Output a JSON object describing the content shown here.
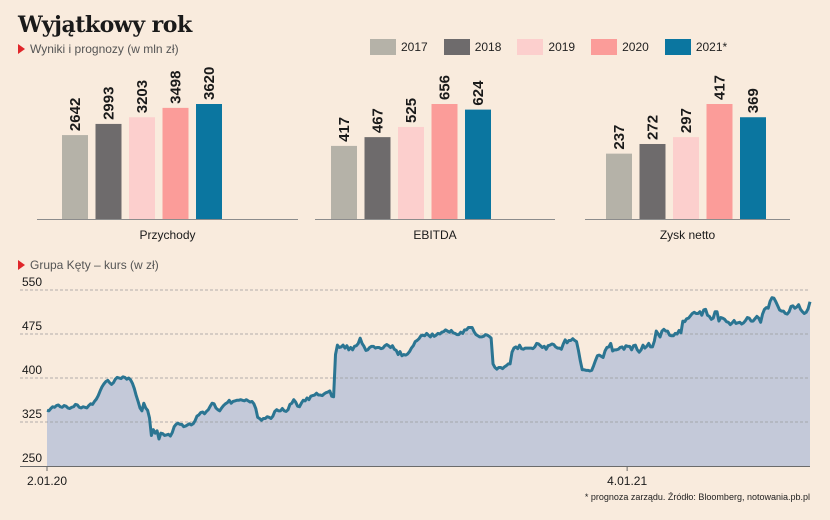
{
  "title": "Wyjątkowy rok",
  "subtitle_bars": "Wyniki i prognozy (w mln zł)",
  "subtitle_line": "Grupa Kęty – kurs (w zł)",
  "footnote": "* prognoza zarządu. Źródło: Bloomberg, notowania.pb.pl",
  "colors": {
    "2017": "#b5b2a8",
    "2018": "#6e6b6c",
    "2019": "#fccfcd",
    "2020": "#fb9c99",
    "2021*": "#0b76a0",
    "line": "#2b7592",
    "area": "#c4c9d9",
    "triangle": "#e0262a"
  },
  "chart_data": [
    {
      "type": "bar",
      "series_names": [
        "2017",
        "2018",
        "2019",
        "2020",
        "2021*"
      ],
      "groups": [
        {
          "name": "Przychody",
          "values": [
            2642,
            2993,
            3203,
            3498,
            3620
          ]
        },
        {
          "name": "EBITDA",
          "values": [
            417,
            467,
            525,
            656,
            624
          ]
        },
        {
          "name": "Zysk netto",
          "values": [
            237,
            272,
            297,
            417,
            369
          ]
        }
      ]
    },
    {
      "type": "line",
      "ylabel": "Grupa Kęty – kurs (w zł)",
      "ylim": [
        250,
        550
      ],
      "yticks": [
        250,
        325,
        400,
        475,
        550
      ],
      "xticks": [
        {
          "label": "2.01.20",
          "x": "2020-01-02"
        },
        {
          "label": "4.01.21",
          "x": "2021-01-04"
        }
      ],
      "x_start": "2020-01-02",
      "x_end": "2021-04-30",
      "values": [
        345,
        344,
        348,
        351,
        350,
        353,
        354,
        351,
        350,
        353,
        352,
        349,
        348,
        350,
        351,
        355,
        354,
        350,
        349,
        351,
        350,
        349,
        353,
        356,
        355,
        360,
        364,
        370,
        378,
        385,
        390,
        394,
        396,
        392,
        389,
        392,
        398,
        401,
        400,
        399,
        402,
        401,
        398,
        400,
        397,
        391,
        382,
        370,
        360,
        349,
        344,
        357,
        349,
        345,
        332,
        302,
        312,
        306,
        310,
        296,
        306,
        305,
        302,
        303,
        304,
        301,
        307,
        317,
        321,
        323,
        321,
        321,
        317,
        318,
        320,
        322,
        320,
        322,
        327,
        335,
        337,
        341,
        342,
        339,
        343,
        346,
        352,
        357,
        356,
        349,
        346,
        344,
        349,
        353,
        356,
        358,
        362,
        357,
        360,
        361,
        362,
        362,
        363,
        362,
        361,
        363,
        361,
        359,
        360,
        356,
        348,
        333,
        331,
        328,
        331,
        331,
        334,
        333,
        331,
        335,
        343,
        346,
        344,
        344,
        348,
        344,
        343,
        346,
        355,
        357,
        363,
        359,
        352,
        351,
        357,
        362,
        361,
        366,
        363,
        369,
        370,
        371,
        374,
        371,
        371,
        370,
        373,
        375,
        376,
        378,
        369,
        368,
        440,
        456,
        452,
        453,
        456,
        451,
        455,
        448,
        452,
        448,
        454,
        455,
        459,
        468,
        459,
        454,
        447,
        448,
        452,
        454,
        454,
        451,
        452,
        452,
        450,
        451,
        455,
        457,
        455,
        452,
        455,
        449,
        447,
        440,
        445,
        438,
        440,
        439,
        441,
        445,
        451,
        455,
        462,
        464,
        467,
        472,
        473,
        472,
        476,
        473,
        470,
        475,
        471,
        473,
        476,
        475,
        478,
        479,
        482,
        480,
        478,
        481,
        477,
        476,
        474,
        474,
        478,
        476,
        482,
        482,
        486,
        486,
        486,
        479,
        474,
        472,
        470,
        470,
        471,
        474,
        473,
        471,
        468,
        424,
        418,
        415,
        418,
        418,
        416,
        419,
        421,
        424,
        424,
        444,
        451,
        453,
        450,
        456,
        450,
        449,
        451,
        451,
        451,
        451,
        450,
        453,
        459,
        458,
        455,
        452,
        454,
        449,
        455,
        456,
        458,
        457,
        453,
        451,
        451,
        449,
        458,
        465,
        460,
        464,
        464,
        467,
        464,
        462,
        447,
        429,
        414,
        414,
        413,
        413,
        412,
        413,
        421,
        430,
        438,
        439,
        437,
        435,
        446,
        452,
        453,
        459,
        446,
        448,
        448,
        449,
        452,
        453,
        449,
        455,
        454,
        454,
        448,
        455,
        456,
        448,
        444,
        448,
        456,
        451,
        454,
        459,
        453,
        453,
        463,
        480,
        475,
        470,
        480,
        483,
        480,
        480,
        473,
        472,
        472,
        476,
        475,
        481,
        477,
        497,
        496,
        501,
        502,
        506,
        510,
        512,
        510,
        510,
        513,
        507,
        516,
        517,
        507,
        505,
        500,
        502,
        513,
        513,
        497,
        503,
        502,
        500,
        496,
        495,
        491,
        494,
        498,
        493,
        494,
        495,
        492,
        494,
        498,
        503,
        502,
        497,
        497,
        501,
        505,
        502,
        495,
        509,
        517,
        520,
        519,
        531,
        537,
        536,
        530,
        523,
        516,
        514,
        514,
        510,
        509,
        513,
        522,
        523,
        519,
        521,
        525,
        517,
        513,
        510,
        512,
        518,
        530
      ]
    }
  ]
}
